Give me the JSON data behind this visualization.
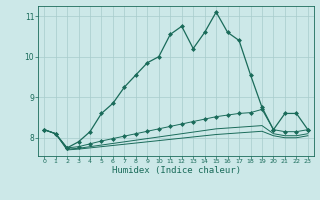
{
  "xlabel": "Humidex (Indice chaleur)",
  "bg_color": "#cce8e8",
  "grid_color": "#a8cccc",
  "line_color": "#1a6b5a",
  "xlim": [
    -0.5,
    23.5
  ],
  "ylim": [
    7.55,
    11.25
  ],
  "xticks": [
    0,
    1,
    2,
    3,
    4,
    5,
    6,
    7,
    8,
    9,
    10,
    11,
    12,
    13,
    14,
    15,
    16,
    17,
    18,
    19,
    20,
    21,
    22,
    23
  ],
  "yticks": [
    8,
    9,
    10,
    11
  ],
  "line1_x": [
    0,
    1,
    2,
    3,
    4,
    5,
    6,
    7,
    8,
    9,
    10,
    11,
    12,
    13,
    14,
    15,
    16,
    17,
    18,
    19,
    20,
    21,
    22,
    23
  ],
  "line1_y": [
    8.2,
    8.1,
    7.75,
    7.9,
    8.15,
    8.6,
    8.85,
    9.25,
    9.55,
    9.85,
    10.0,
    10.55,
    10.75,
    10.2,
    10.6,
    11.1,
    10.6,
    10.4,
    9.55,
    8.75,
    8.2,
    8.6,
    8.6,
    8.2
  ],
  "line2_x": [
    0,
    1,
    2,
    3,
    4,
    5,
    6,
    7,
    8,
    9,
    10,
    11,
    12,
    13,
    14,
    15,
    16,
    17,
    18,
    19,
    20,
    21,
    22,
    23
  ],
  "line2_y": [
    8.2,
    8.1,
    7.75,
    7.78,
    7.85,
    7.92,
    7.98,
    8.04,
    8.1,
    8.16,
    8.22,
    8.28,
    8.34,
    8.4,
    8.46,
    8.52,
    8.56,
    8.6,
    8.62,
    8.7,
    8.2,
    8.15,
    8.15,
    8.2
  ],
  "line3_x": [
    0,
    1,
    2,
    3,
    4,
    5,
    6,
    7,
    8,
    9,
    10,
    11,
    12,
    13,
    14,
    15,
    16,
    17,
    18,
    19,
    20,
    21,
    22,
    23
  ],
  "line3_y": [
    8.2,
    8.1,
    7.72,
    7.74,
    7.78,
    7.82,
    7.86,
    7.9,
    7.94,
    7.98,
    8.02,
    8.06,
    8.1,
    8.14,
    8.18,
    8.22,
    8.24,
    8.26,
    8.28,
    8.3,
    8.1,
    8.05,
    8.05,
    8.1
  ],
  "line4_x": [
    0,
    1,
    2,
    3,
    4,
    5,
    6,
    7,
    8,
    9,
    10,
    11,
    12,
    13,
    14,
    15,
    16,
    17,
    18,
    19,
    20,
    21,
    22,
    23
  ],
  "line4_y": [
    8.2,
    8.1,
    7.7,
    7.72,
    7.75,
    7.78,
    7.81,
    7.84,
    7.87,
    7.9,
    7.93,
    7.96,
    7.99,
    8.02,
    8.05,
    8.08,
    8.1,
    8.12,
    8.14,
    8.16,
    8.05,
    8.0,
    8.0,
    8.05
  ]
}
